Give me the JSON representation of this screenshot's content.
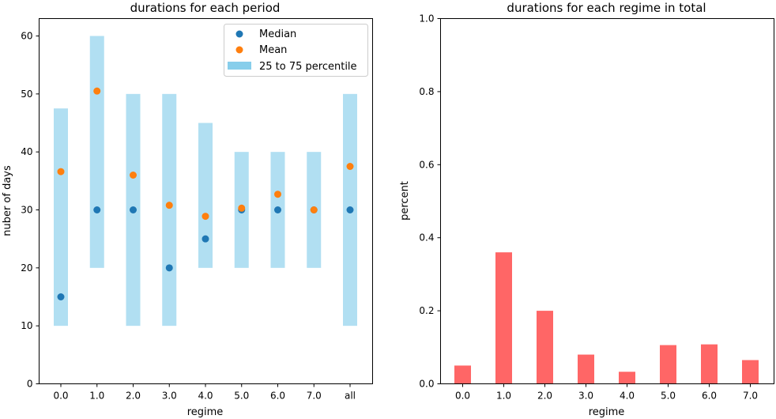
{
  "chart_data": [
    {
      "type": "scatter",
      "title": "durations for each period",
      "xlabel": "regime",
      "ylabel": "nuber of days",
      "categories": [
        "0.0",
        "1.0",
        "2.0",
        "3.0",
        "4.0",
        "5.0",
        "6.0",
        "7.0",
        "all"
      ],
      "ylim": [
        0,
        63
      ],
      "yticks": [
        0,
        10,
        20,
        30,
        40,
        50,
        60
      ],
      "grid": false,
      "legend_position": "top-right",
      "series": [
        {
          "name": "Median",
          "kind": "points",
          "color": "#1f77b4",
          "values": [
            15,
            30,
            30,
            20,
            25,
            30,
            30,
            30,
            30
          ]
        },
        {
          "name": "Mean",
          "kind": "points",
          "color": "#ff7f0e",
          "values": [
            36.6,
            50.5,
            36.0,
            30.8,
            28.9,
            30.3,
            32.7,
            30.0,
            37.5
          ]
        },
        {
          "name": "25 to 75 percentile",
          "kind": "range_bars",
          "color": "#87ceeb",
          "low": [
            10,
            20,
            10,
            10,
            20,
            20,
            20,
            20,
            10
          ],
          "high": [
            47.5,
            60,
            50,
            50,
            45,
            40,
            40,
            40,
            50
          ]
        }
      ]
    },
    {
      "type": "bar",
      "title": "durations for each regime in total",
      "xlabel": "regime",
      "ylabel": "percent",
      "categories": [
        "0.0",
        "1.0",
        "2.0",
        "3.0",
        "4.0",
        "5.0",
        "6.0",
        "7.0"
      ],
      "values": [
        0.05,
        0.36,
        0.2,
        0.08,
        0.033,
        0.106,
        0.108,
        0.065
      ],
      "ylim": [
        0,
        1.0
      ],
      "yticks": [
        "0.0",
        "0.2",
        "0.4",
        "0.6",
        "0.8",
        "1.0"
      ],
      "color": "#ff6666",
      "grid": false
    }
  ]
}
